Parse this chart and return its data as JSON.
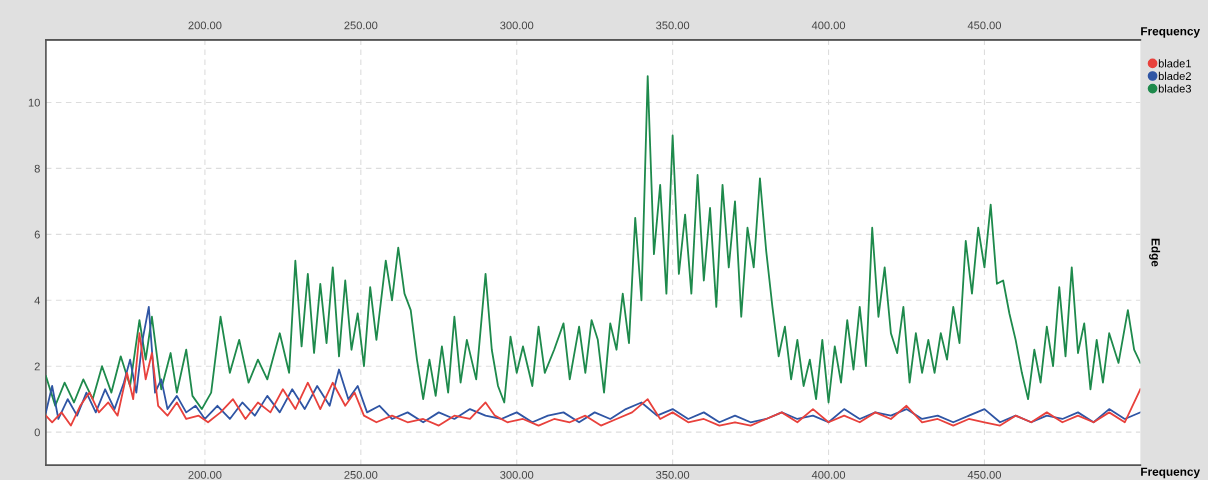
{
  "chart_data": {
    "type": "line",
    "xlabel": "Frequency",
    "x2label": "Frequency",
    "ylabel": "Edge",
    "xlim": [
      149,
      500
    ],
    "x2lim": [
      149,
      500
    ],
    "xticks": [
      {
        "value": 200,
        "label": "200.00"
      },
      {
        "value": 250,
        "label": "250.00"
      },
      {
        "value": 300,
        "label": "300.00"
      },
      {
        "value": 350,
        "label": "350.00"
      },
      {
        "value": 400,
        "label": "400.00"
      },
      {
        "value": 450,
        "label": "450.00"
      }
    ],
    "x2ticks": [
      {
        "value": 200,
        "label": "200.00"
      },
      {
        "value": 250,
        "label": "250.00"
      },
      {
        "value": 300,
        "label": "300.00"
      },
      {
        "value": 350,
        "label": "350.00"
      },
      {
        "value": 400,
        "label": "400.00"
      },
      {
        "value": 450,
        "label": "450.00"
      }
    ],
    "ylim": [
      -1,
      11.9
    ],
    "yticks": [
      0,
      2,
      4,
      6,
      8,
      10
    ],
    "grid": true,
    "legend": "top right",
    "marker": "none",
    "line_style": "solid",
    "series": [
      {
        "name": "blade1",
        "color": "#e8413c",
        "x": [
          149,
          151,
          154,
          157,
          160,
          163,
          166,
          169,
          172,
          175,
          177,
          179,
          181,
          183,
          185,
          188,
          191,
          194,
          198,
          201,
          205,
          209,
          213,
          217,
          221,
          225,
          229,
          233,
          237,
          241,
          245,
          248,
          251,
          255,
          260,
          265,
          270,
          275,
          280,
          285,
          290,
          293,
          297,
          302,
          307,
          312,
          317,
          322,
          327,
          332,
          337,
          342,
          346,
          350,
          355,
          360,
          365,
          370,
          375,
          380,
          385,
          390,
          395,
          400,
          405,
          410,
          415,
          420,
          425,
          430,
          435,
          440,
          445,
          450,
          455,
          460,
          465,
          470,
          475,
          480,
          485,
          490,
          495,
          500
        ],
        "values": [
          0.5,
          0.3,
          0.6,
          0.2,
          0.8,
          1.2,
          0.6,
          0.9,
          0.5,
          1.8,
          1.0,
          3.0,
          1.6,
          2.4,
          0.8,
          0.5,
          0.9,
          0.4,
          0.5,
          0.3,
          0.6,
          1.0,
          0.4,
          0.9,
          0.6,
          1.3,
          0.7,
          1.5,
          0.7,
          1.5,
          0.8,
          1.2,
          0.5,
          0.3,
          0.5,
          0.3,
          0.4,
          0.2,
          0.5,
          0.4,
          0.9,
          0.5,
          0.3,
          0.4,
          0.2,
          0.4,
          0.3,
          0.5,
          0.2,
          0.4,
          0.6,
          1.0,
          0.4,
          0.6,
          0.3,
          0.4,
          0.2,
          0.3,
          0.2,
          0.4,
          0.6,
          0.3,
          0.7,
          0.3,
          0.5,
          0.3,
          0.6,
          0.4,
          0.8,
          0.3,
          0.4,
          0.2,
          0.4,
          0.3,
          0.2,
          0.5,
          0.3,
          0.6,
          0.3,
          0.5,
          0.3,
          0.6,
          0.3,
          1.3
        ]
      },
      {
        "name": "blade2",
        "color": "#2f55a4",
        "x": [
          149,
          151,
          153,
          156,
          159,
          162,
          165,
          168,
          171,
          174,
          176,
          178,
          180,
          182,
          184,
          186,
          188,
          191,
          194,
          197,
          200,
          204,
          208,
          212,
          216,
          220,
          224,
          228,
          232,
          236,
          240,
          243,
          246,
          249,
          252,
          256,
          260,
          265,
          270,
          275,
          280,
          285,
          290,
          295,
          300,
          305,
          310,
          315,
          320,
          325,
          330,
          335,
          340,
          345,
          350,
          355,
          360,
          365,
          370,
          375,
          380,
          385,
          390,
          395,
          400,
          405,
          410,
          415,
          420,
          425,
          430,
          435,
          440,
          445,
          450,
          455,
          460,
          465,
          470,
          475,
          480,
          485,
          490,
          495,
          500
        ],
        "values": [
          0.6,
          1.4,
          0.4,
          1.0,
          0.5,
          1.2,
          0.6,
          1.3,
          0.7,
          1.5,
          2.2,
          1.2,
          2.8,
          3.8,
          1.2,
          1.6,
          0.7,
          1.1,
          0.6,
          0.8,
          0.4,
          0.8,
          0.4,
          0.9,
          0.5,
          1.1,
          0.6,
          1.3,
          0.7,
          1.4,
          0.8,
          1.9,
          1.0,
          1.4,
          0.6,
          0.8,
          0.4,
          0.6,
          0.3,
          0.6,
          0.4,
          0.7,
          0.5,
          0.4,
          0.6,
          0.3,
          0.5,
          0.6,
          0.3,
          0.6,
          0.4,
          0.7,
          0.9,
          0.5,
          0.7,
          0.4,
          0.6,
          0.3,
          0.5,
          0.3,
          0.4,
          0.6,
          0.4,
          0.5,
          0.3,
          0.7,
          0.4,
          0.6,
          0.5,
          0.7,
          0.4,
          0.5,
          0.3,
          0.5,
          0.7,
          0.3,
          0.5,
          0.3,
          0.5,
          0.4,
          0.6,
          0.3,
          0.7,
          0.4,
          0.6
        ]
      },
      {
        "name": "blade3",
        "color": "#1e8a4c",
        "x": [
          149,
          152,
          155,
          158,
          161,
          164,
          167,
          170,
          173,
          176,
          179,
          181,
          183,
          186,
          189,
          191,
          194,
          196,
          199,
          202,
          205,
          208,
          211,
          214,
          217,
          220,
          224,
          227,
          229,
          231,
          233,
          235,
          237,
          239,
          241,
          243,
          245,
          247,
          249,
          251,
          253,
          255,
          258,
          260,
          262,
          264,
          266,
          268,
          270,
          272,
          274,
          276,
          278,
          280,
          282,
          284,
          287,
          290,
          292,
          294,
          296,
          298,
          300,
          302,
          305,
          307,
          309,
          312,
          315,
          317,
          320,
          322,
          324,
          326,
          328,
          330,
          332,
          334,
          336,
          338,
          340,
          342,
          344,
          346,
          348,
          350,
          352,
          354,
          356,
          358,
          360,
          362,
          364,
          366,
          368,
          370,
          372,
          374,
          376,
          378,
          380,
          382,
          384,
          386,
          388,
          390,
          392,
          394,
          396,
          398,
          400,
          402,
          404,
          406,
          408,
          410,
          412,
          414,
          416,
          418,
          420,
          422,
          424,
          426,
          428,
          430,
          432,
          434,
          436,
          438,
          440,
          442,
          444,
          446,
          448,
          450,
          452,
          454,
          456,
          458,
          460,
          462,
          464,
          466,
          468,
          470,
          472,
          474,
          476,
          478,
          480,
          482,
          484,
          486,
          488,
          490,
          493,
          496,
          498,
          500
        ],
        "values": [
          1.7,
          0.8,
          1.5,
          0.9,
          1.6,
          1.0,
          2.0,
          1.2,
          2.3,
          1.4,
          3.4,
          2.2,
          3.5,
          1.3,
          2.4,
          1.2,
          2.5,
          1.1,
          0.7,
          1.2,
          3.5,
          1.8,
          2.8,
          1.5,
          2.2,
          1.6,
          3.0,
          1.8,
          5.2,
          2.6,
          4.8,
          2.4,
          4.5,
          2.7,
          5.0,
          2.3,
          4.6,
          2.5,
          3.6,
          2.0,
          4.4,
          2.8,
          5.2,
          4.0,
          5.6,
          4.2,
          3.7,
          2.2,
          1.0,
          2.2,
          1.1,
          2.6,
          1.2,
          3.5,
          1.5,
          2.8,
          1.6,
          4.8,
          2.5,
          1.4,
          0.9,
          2.9,
          1.8,
          2.6,
          1.4,
          3.2,
          1.8,
          2.5,
          3.3,
          1.6,
          3.2,
          1.8,
          3.4,
          2.8,
          1.2,
          3.3,
          2.5,
          4.2,
          2.7,
          6.5,
          4.0,
          10.8,
          5.4,
          7.5,
          4.2,
          9.0,
          4.8,
          6.6,
          4.2,
          7.8,
          4.6,
          6.8,
          3.8,
          7.5,
          5.0,
          7.0,
          3.5,
          6.2,
          5.0,
          7.7,
          5.5,
          3.8,
          2.3,
          3.2,
          1.6,
          2.8,
          1.4,
          2.2,
          1.0,
          2.8,
          0.9,
          2.6,
          1.5,
          3.4,
          1.9,
          3.8,
          2.0,
          6.2,
          3.5,
          5.0,
          3.0,
          2.4,
          3.8,
          1.5,
          3.0,
          1.8,
          2.8,
          1.8,
          3.0,
          2.2,
          3.8,
          2.7,
          5.8,
          4.2,
          6.2,
          5.0,
          6.9,
          4.5,
          4.6,
          3.6,
          2.8,
          1.8,
          1.0,
          2.5,
          1.5,
          3.2,
          2.0,
          4.4,
          2.3,
          5.0,
          2.4,
          3.3,
          1.3,
          2.8,
          1.5,
          3.0,
          2.1,
          3.7,
          2.5,
          2.1
        ]
      }
    ]
  }
}
